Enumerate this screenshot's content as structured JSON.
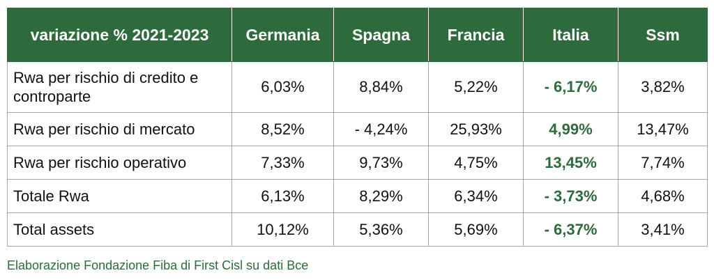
{
  "header": [
    "variazione % 2021-2023",
    "Germania",
    "Spagna",
    "Francia",
    "Italia",
    "Ssm"
  ],
  "rows": [
    {
      "label": "Rwa per rischio di credito e controparte",
      "values": [
        "6,03%",
        "8,84%",
        "5,22%",
        "- 6,17%",
        "3,82%"
      ]
    },
    {
      "label": "Rwa per rischio di mercato",
      "values": [
        "8,52%",
        "- 4,24%",
        "25,93%",
        "4,99%",
        "13,47%"
      ]
    },
    {
      "label": "Rwa per rischio operativo",
      "values": [
        "7,33%",
        "9,73%",
        "4,75%",
        "13,45%",
        "7,74%"
      ]
    },
    {
      "label": "Totale Rwa",
      "values": [
        "6,13%",
        "8,29%",
        "6,34%",
        "- 3,73%",
        "4,68%"
      ]
    },
    {
      "label": "Total assets",
      "values": [
        "10,12%",
        "5,36%",
        "5,69%",
        "- 6,37%",
        "3,41%"
      ]
    }
  ],
  "highlight_column": "Italia",
  "colors": {
    "header_bg": "#2e6b3c",
    "highlight_text": "#2e6b3c",
    "border": "#a7a7a7"
  },
  "caption": "Elaborazione Fondazione Fiba di First Cisl su dati Bce"
}
